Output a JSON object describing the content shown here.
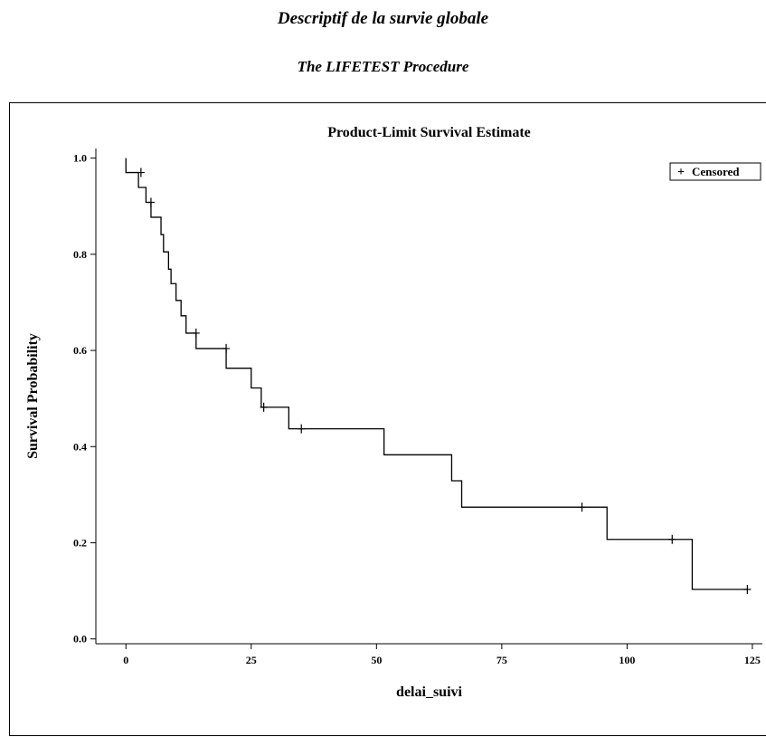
{
  "page": {
    "title": "Descriptif de la survie globale",
    "procedure": "The LIFETEST Procedure"
  },
  "chart_data": {
    "type": "line",
    "title": "Product-Limit Survival Estimate",
    "xlabel": "delai_suivi",
    "ylabel": "Survival Probability",
    "xlim": [
      -6,
      127
    ],
    "ylim": [
      -0.01,
      1.02
    ],
    "xticks": [
      0,
      25,
      50,
      75,
      100,
      125
    ],
    "yticks": [
      0.0,
      0.2,
      0.4,
      0.6,
      0.8,
      1.0
    ],
    "xtick_labels": [
      "0",
      "25",
      "50",
      "75",
      "100",
      "125"
    ],
    "ytick_labels": [
      "0.0",
      "0.2",
      "0.4",
      "0.6",
      "0.8",
      "1.0"
    ],
    "grid": false,
    "legend": {
      "position": "top-right",
      "entries": [
        {
          "symbol": "+",
          "label": "Censored"
        }
      ]
    },
    "series": [
      {
        "step": "post",
        "x": [
          0,
          2.5,
          4,
          5,
          7,
          7.5,
          8.5,
          9,
          10,
          11,
          12,
          14,
          20,
          25,
          27,
          32.5,
          51.5,
          65,
          67,
          96,
          113,
          124
        ],
        "y": [
          0.97,
          0.939,
          0.908,
          0.877,
          0.841,
          0.805,
          0.769,
          0.739,
          0.704,
          0.672,
          0.636,
          0.604,
          0.563,
          0.522,
          0.482,
          0.437,
          0.383,
          0.329,
          0.274,
          0.207,
          0.103,
          0.103
        ]
      }
    ],
    "censored": [
      {
        "x": 3,
        "y": 0.97
      },
      {
        "x": 5,
        "y": 0.908
      },
      {
        "x": 14,
        "y": 0.636
      },
      {
        "x": 20,
        "y": 0.604
      },
      {
        "x": 27.5,
        "y": 0.482
      },
      {
        "x": 35,
        "y": 0.437
      },
      {
        "x": 91,
        "y": 0.274
      },
      {
        "x": 109,
        "y": 0.207
      },
      {
        "x": 124,
        "y": 0.103
      }
    ],
    "colors": {
      "line": "#000000",
      "background": "#ffffff"
    }
  }
}
